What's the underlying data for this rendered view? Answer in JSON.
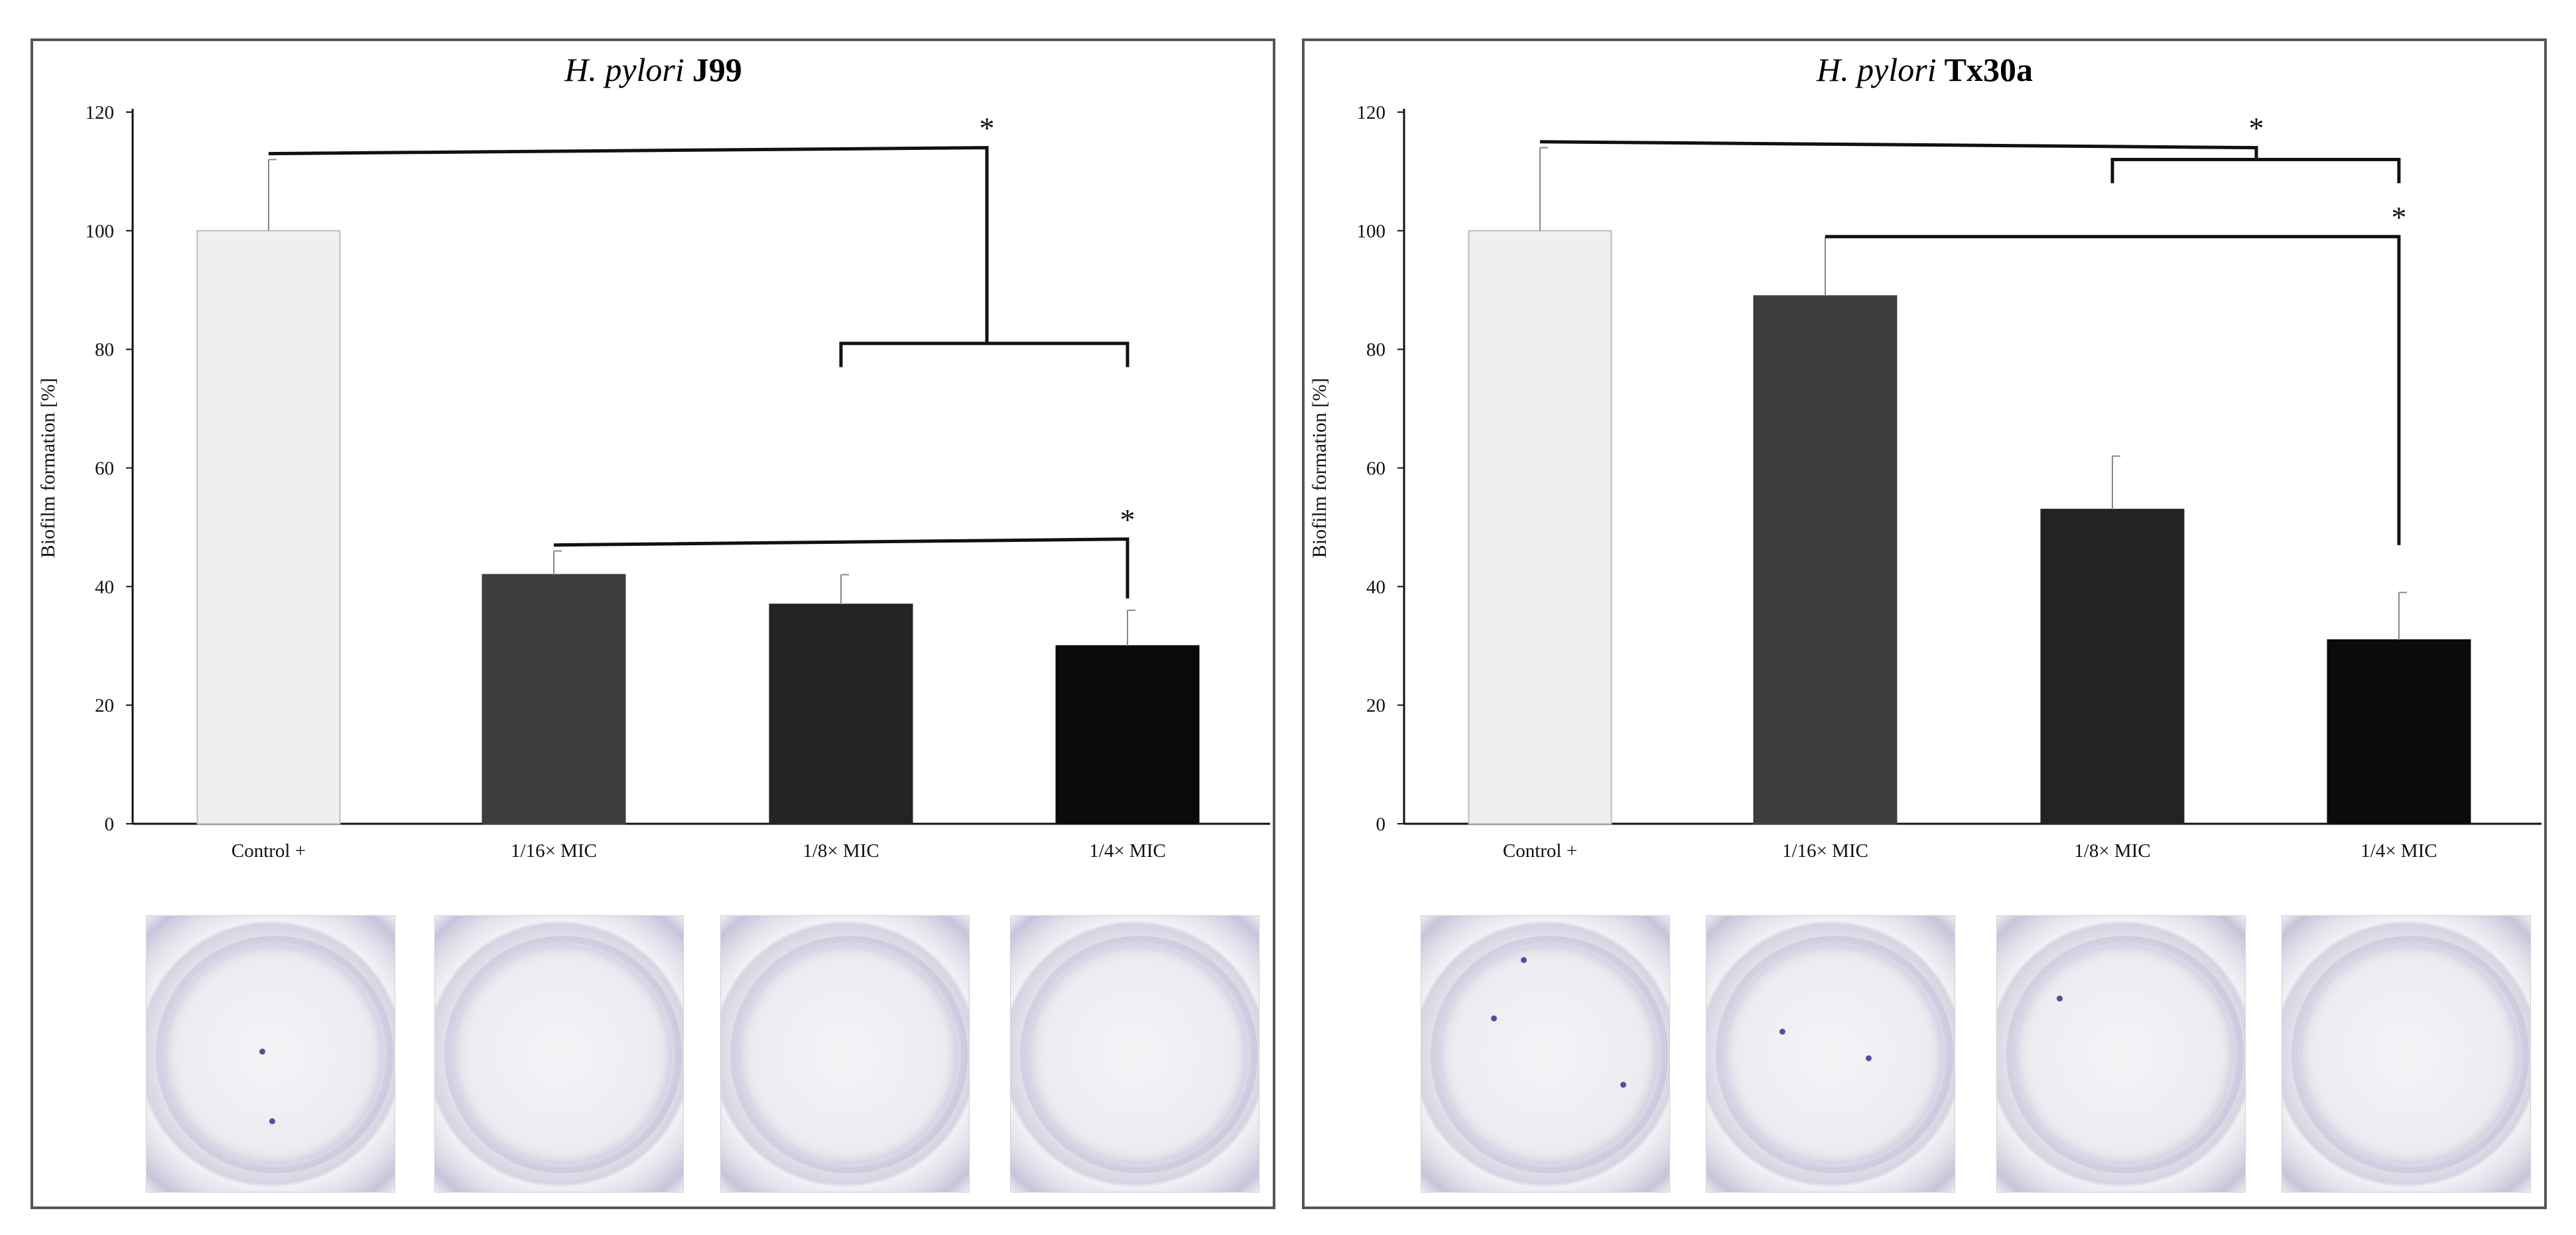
{
  "chart_data": [
    {
      "type": "bar",
      "title_italic": "H. pylori",
      "title_strain": "J99",
      "ylabel": "Biofilm formation [%]",
      "xlabel": "",
      "ylim": [
        0,
        120
      ],
      "yticks": [
        "0",
        "20",
        "40",
        "60",
        "80",
        "100",
        "120"
      ],
      "categories": [
        "Control +",
        "1/16× MIC",
        "1/8× MIC",
        "1/4× MIC"
      ],
      "values": [
        100,
        42,
        37,
        30
      ],
      "error_upper": [
        112,
        46,
        42,
        36
      ],
      "bar_colors": [
        "#efefef",
        "#3d3d3d",
        "#232323",
        "#0b0b0b"
      ],
      "significance_star": "*",
      "significance": [
        "Control + vs 1/8× MIC and 1/4× MIC",
        "1/16× MIC vs 1/4× MIC"
      ]
    },
    {
      "type": "bar",
      "title_italic": "H. pylori",
      "title_strain": "Tx30a",
      "ylabel": "Biofilm formation [%]",
      "xlabel": "",
      "ylim": [
        0,
        120
      ],
      "yticks": [
        "0",
        "20",
        "40",
        "60",
        "80",
        "100",
        "120"
      ],
      "categories": [
        "Control +",
        "1/16× MIC",
        "1/8× MIC",
        "1/4× MIC"
      ],
      "values": [
        100,
        89,
        53,
        31
      ],
      "error_upper": [
        114,
        99,
        62,
        39
      ],
      "bar_colors": [
        "#efefef",
        "#3d3d3d",
        "#232323",
        "#0b0b0b"
      ],
      "significance_star": "*",
      "significance": [
        "Control + vs 1/8× MIC and 1/4× MIC",
        "1/16× MIC vs 1/4× MIC"
      ]
    }
  ],
  "photos_caption_hint": [
    "crystal-violet-well-control",
    "crystal-violet-well-1-16-mic",
    "crystal-violet-well-1-8-mic",
    "crystal-violet-well-1-4-mic"
  ],
  "colors": {
    "axis": "#111111",
    "panel_border": "#555555",
    "stain": "#5a4aa0"
  }
}
